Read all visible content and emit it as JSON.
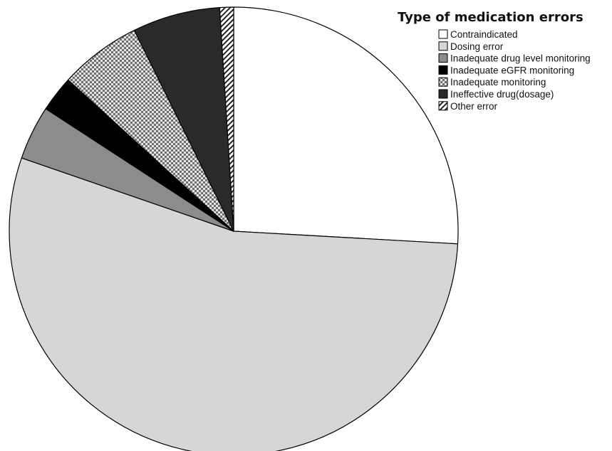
{
  "chart_data": {
    "type": "pie",
    "title": "",
    "legend_title": "Type of medication errors",
    "legend_position": "top-right",
    "start_angle_deg": 0,
    "direction": "clockwise",
    "slices": [
      {
        "label": "Contraindicated",
        "value": 25.9,
        "fill": "#ffffff",
        "pattern": "none"
      },
      {
        "label": "Dosing error",
        "value": 54.4,
        "fill": "#d6d6d6",
        "pattern": "none"
      },
      {
        "label": "Inadequate drug level monitoring",
        "value": 3.9,
        "fill": "#8c8c8c",
        "pattern": "none"
      },
      {
        "label": "Inadequate eGFR monitoring",
        "value": 2.6,
        "fill": "#000000",
        "pattern": "none"
      },
      {
        "label": "Inadequate monitoring",
        "value": 5.9,
        "fill": "#d9d9d9",
        "pattern": "checker"
      },
      {
        "label": "Ineffective drug(dosage)",
        "value": 6.3,
        "fill": "#2a2a2a",
        "pattern": "none"
      },
      {
        "label": "Other error",
        "value": 1.0,
        "fill": "#ffffff",
        "pattern": "diagonal"
      }
    ]
  }
}
